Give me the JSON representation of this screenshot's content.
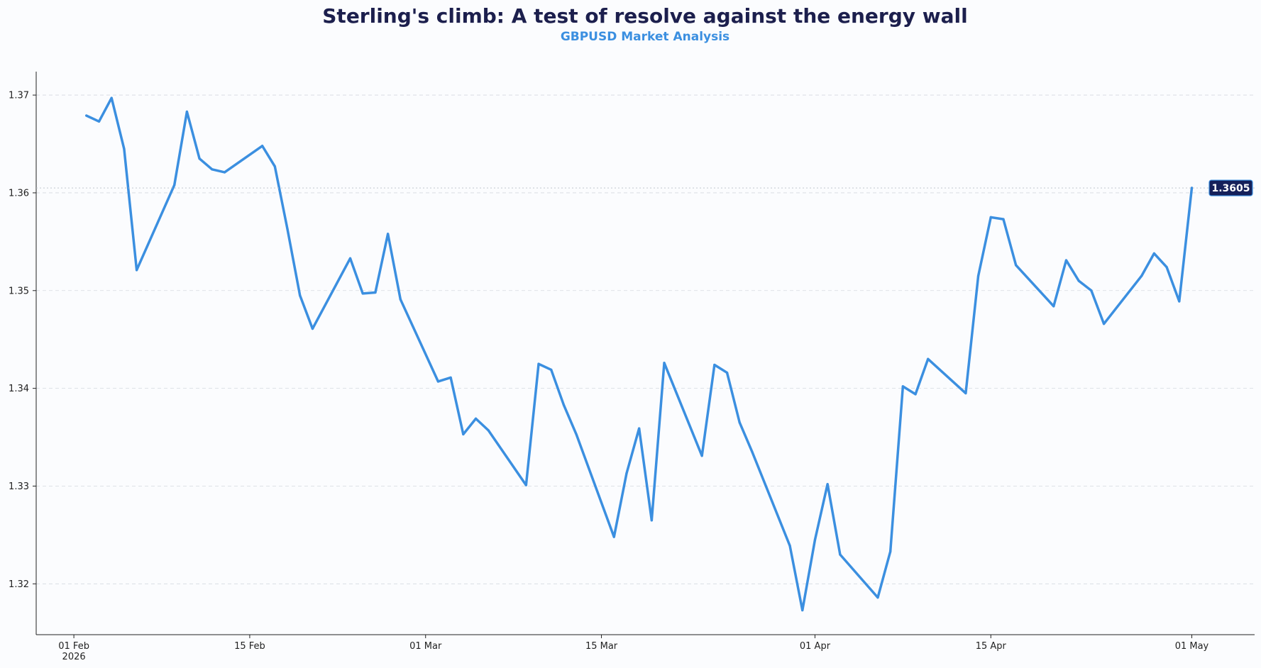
{
  "chart_data": {
    "type": "line",
    "title": "Sterling's climb: A test of resolve against the energy wall",
    "subtitle": "GBPUSD Market Analysis",
    "xlabel": "",
    "ylabel": "",
    "x_range": [
      "2026-01-29",
      "2026-05-06"
    ],
    "ylim": [
      1.3148,
      1.3724
    ],
    "grid": "horizontal dashed",
    "y_ticks": [
      {
        "value": 1.32,
        "label": "1.32"
      },
      {
        "value": 1.33,
        "label": "1.33"
      },
      {
        "value": 1.34,
        "label": "1.34"
      },
      {
        "value": 1.35,
        "label": "1.35"
      },
      {
        "value": 1.36,
        "label": "1.36"
      },
      {
        "value": 1.37,
        "label": "1.37"
      }
    ],
    "x_ticks": [
      {
        "date": "2026-02-01",
        "label": "01 Feb",
        "sublabel": "2026"
      },
      {
        "date": "2026-02-15",
        "label": "15 Feb"
      },
      {
        "date": "2026-03-01",
        "label": "01 Mar"
      },
      {
        "date": "2026-03-15",
        "label": "15 Mar"
      },
      {
        "date": "2026-04-01",
        "label": "01 Apr"
      },
      {
        "date": "2026-04-15",
        "label": "15 Apr"
      },
      {
        "date": "2026-05-01",
        "label": "01 May"
      }
    ],
    "series": [
      {
        "color": "#3b8fe0",
        "points": [
          [
            "2026-02-02",
            1.3679
          ],
          [
            "2026-02-03",
            1.3673
          ],
          [
            "2026-02-04",
            1.3697
          ],
          [
            "2026-02-05",
            1.3645
          ],
          [
            "2026-02-06",
            1.3521
          ],
          [
            "2026-02-09",
            1.3608
          ],
          [
            "2026-02-10",
            1.3683
          ],
          [
            "2026-02-11",
            1.3635
          ],
          [
            "2026-02-12",
            1.3624
          ],
          [
            "2026-02-13",
            1.3621
          ],
          [
            "2026-02-16",
            1.3648
          ],
          [
            "2026-02-17",
            1.3627
          ],
          [
            "2026-02-18",
            1.3563
          ],
          [
            "2026-02-19",
            1.3495
          ],
          [
            "2026-02-20",
            1.3461
          ],
          [
            "2026-02-23",
            1.3533
          ],
          [
            "2026-02-24",
            1.3497
          ],
          [
            "2026-02-25",
            1.3498
          ],
          [
            "2026-02-26",
            1.3558
          ],
          [
            "2026-02-27",
            1.3491
          ],
          [
            "2026-03-02",
            1.3407
          ],
          [
            "2026-03-03",
            1.3411
          ],
          [
            "2026-03-04",
            1.3353
          ],
          [
            "2026-03-05",
            1.3369
          ],
          [
            "2026-03-06",
            1.3357
          ],
          [
            "2026-03-09",
            1.3301
          ],
          [
            "2026-03-10",
            1.3425
          ],
          [
            "2026-03-11",
            1.3419
          ],
          [
            "2026-03-12",
            1.3383
          ],
          [
            "2026-03-13",
            1.3353
          ],
          [
            "2026-03-16",
            1.3248
          ],
          [
            "2026-03-17",
            1.3313
          ],
          [
            "2026-03-18",
            1.3359
          ],
          [
            "2026-03-19",
            1.3265
          ],
          [
            "2026-03-20",
            1.3426
          ],
          [
            "2026-03-23",
            1.3331
          ],
          [
            "2026-03-24",
            1.3424
          ],
          [
            "2026-03-25",
            1.3416
          ],
          [
            "2026-03-26",
            1.3365
          ],
          [
            "2026-03-27",
            1.3335
          ],
          [
            "2026-03-30",
            1.3239
          ],
          [
            "2026-03-31",
            1.3173
          ],
          [
            "2026-04-01",
            1.3245
          ],
          [
            "2026-04-02",
            1.3302
          ],
          [
            "2026-04-03",
            1.323
          ],
          [
            "2026-04-06",
            1.3186
          ],
          [
            "2026-04-07",
            1.3233
          ],
          [
            "2026-04-08",
            1.3402
          ],
          [
            "2026-04-09",
            1.3394
          ],
          [
            "2026-04-10",
            1.343
          ],
          [
            "2026-04-13",
            1.3395
          ],
          [
            "2026-04-14",
            1.3515
          ],
          [
            "2026-04-15",
            1.3575
          ],
          [
            "2026-04-16",
            1.3573
          ],
          [
            "2026-04-17",
            1.3526
          ],
          [
            "2026-04-20",
            1.3484
          ],
          [
            "2026-04-21",
            1.3531
          ],
          [
            "2026-04-22",
            1.351
          ],
          [
            "2026-04-23",
            1.35
          ],
          [
            "2026-04-24",
            1.3466
          ],
          [
            "2026-04-27",
            1.3515
          ],
          [
            "2026-04-28",
            1.3538
          ],
          [
            "2026-04-29",
            1.3524
          ],
          [
            "2026-04-30",
            1.3489
          ],
          [
            "2026-05-01",
            1.3605
          ]
        ]
      }
    ],
    "last_value": {
      "value": 1.3605,
      "label": "1.3605",
      "color": "#15205a"
    }
  }
}
